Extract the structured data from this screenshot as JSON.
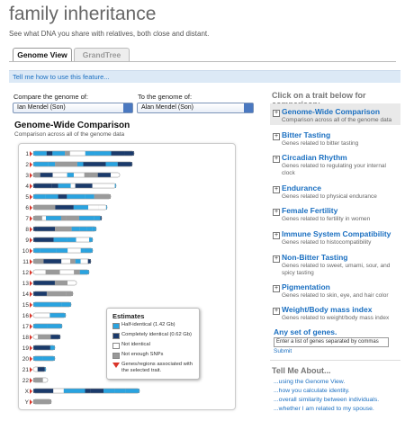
{
  "header": {
    "title": "family inheritance",
    "subtitle": "See what DNA you share with relatives, both close and distant."
  },
  "tabs": [
    "Genome View",
    "GrandTree"
  ],
  "help_link": "Tell me how to use this feature...",
  "compare": {
    "from_label": "Compare the genome of:",
    "from_value": "Ian Mendel (Son)",
    "to_label": "To the genome of:",
    "to_value": "Alan Mendel (Son)"
  },
  "genome_panel": {
    "title": "Genome-Wide Comparison",
    "subtitle": "Comparison across all of the genome data",
    "chromosomes": [
      "1",
      "2",
      "3",
      "4",
      "5",
      "6",
      "7",
      "8",
      "9",
      "10",
      "11",
      "12",
      "13",
      "14",
      "15",
      "16",
      "17",
      "18",
      "19",
      "20",
      "21",
      "22",
      "X",
      "Y"
    ],
    "legend": {
      "title": "Estimates",
      "items": [
        "Half-identical (1.42 Gb)",
        "Completely identical (0.62 Gb)",
        "Not identical",
        "Not enough SNPs",
        "Genes/regions associated with the selected trait."
      ]
    }
  },
  "traits": {
    "heading": "Click on a trait below for comparison:",
    "items": [
      {
        "name": "Genome-Wide Comparison",
        "description": "Comparison across all of the genome data"
      },
      {
        "name": "Bitter Tasting",
        "description": "Genes related to bitter tasting"
      },
      {
        "name": "Circadian Rhythm",
        "description": "Genes related to regulating your internal clock"
      },
      {
        "name": "Endurance",
        "description": "Genes related to physical endurance"
      },
      {
        "name": "Female Fertility",
        "description": "Genes related to fertility in women"
      },
      {
        "name": "Immune System Compatibility",
        "description": "Genes related to histocompatibility"
      },
      {
        "name": "Non-Bitter Tasting",
        "description": "Genes related to sweet, umami, sour, and spicy tasting"
      },
      {
        "name": "Pigmentation",
        "description": "Genes related to skin, eye, and hair color"
      },
      {
        "name": "Weight/Body mass index",
        "description": "Genes related to weight/body mass index"
      }
    ]
  },
  "custom_genes": {
    "title": "Any set of genes.",
    "placeholder": "Enter a list of genes separated by commas",
    "button": "Submit"
  },
  "tell_me": {
    "title": "Tell Me About...",
    "links": [
      "...using the Genome View.",
      "...how you calculate identity.",
      "...overall similarity between individuals.",
      "...whether I am related to my spouse."
    ]
  }
}
